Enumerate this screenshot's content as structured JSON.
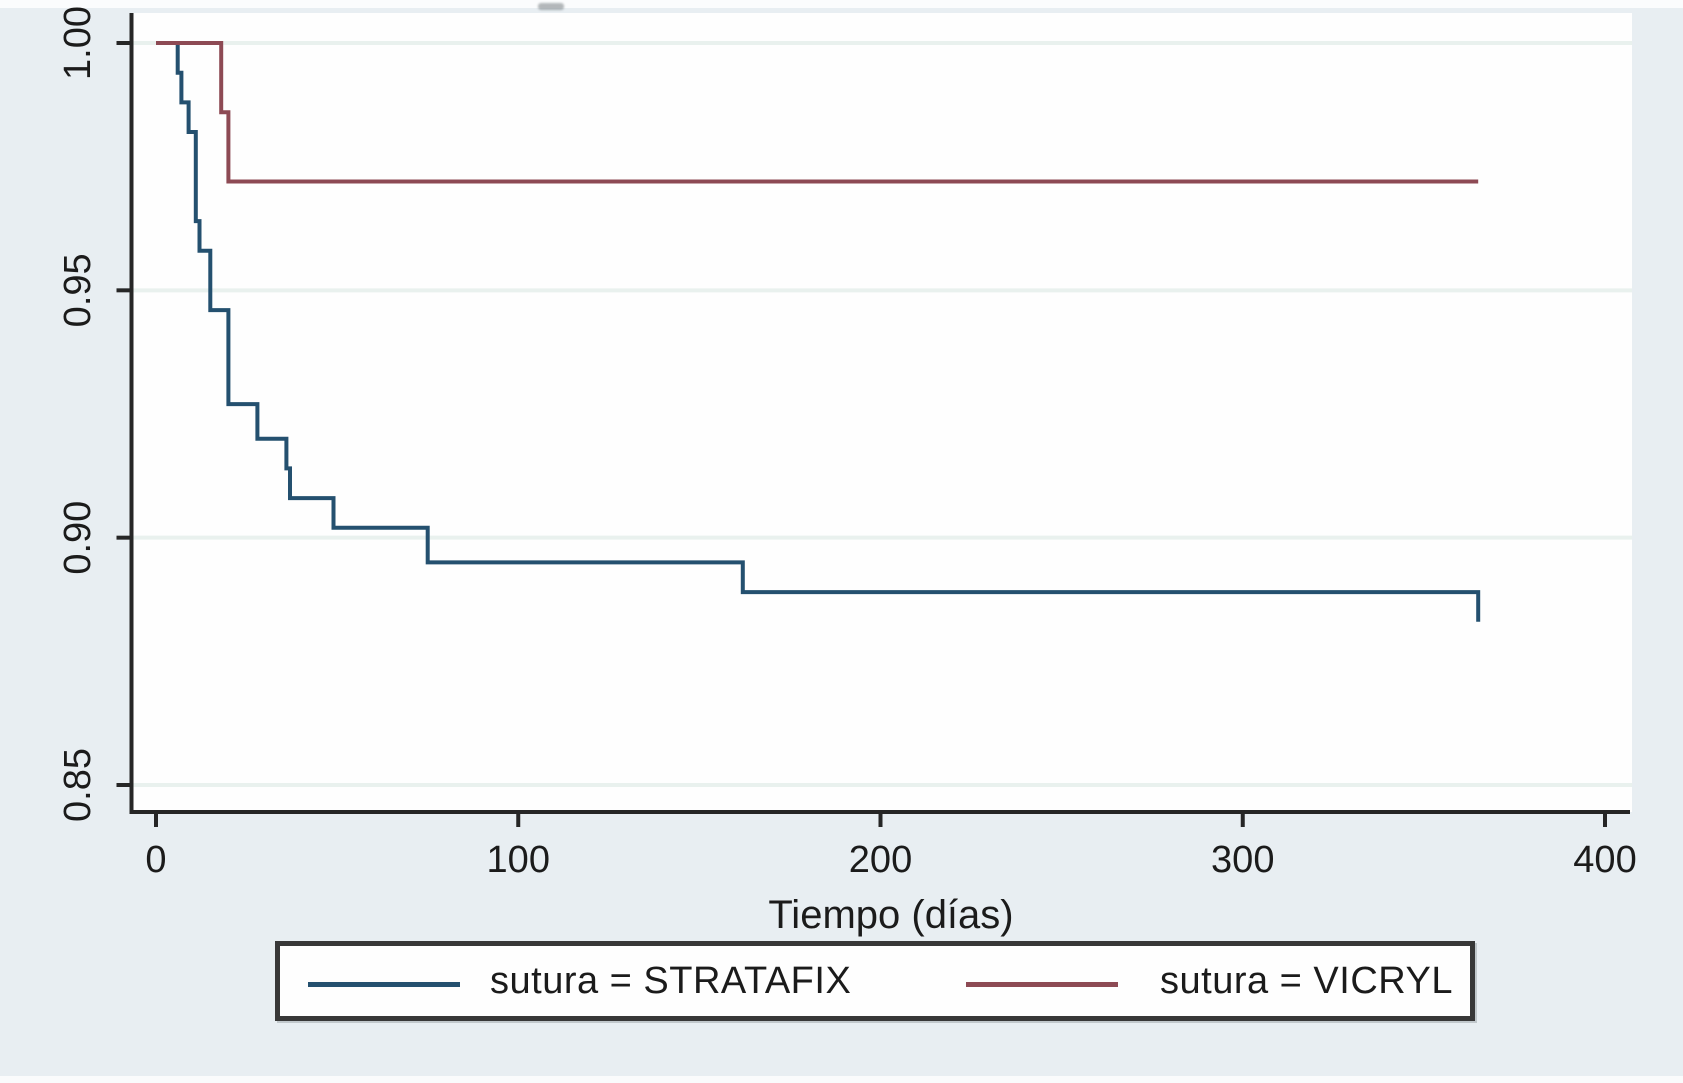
{
  "figure": {
    "description": "Kaplan-Meier survival estimates by suture type",
    "background_color": "#e8eef2",
    "plot_background_color": "#fefefe",
    "axis_color": "#262626",
    "grid_color": "#e9f1ee",
    "text_color": "#1b1b1b"
  },
  "legend": {
    "items": [
      {
        "label": "sutura = STRATAFIX",
        "color": "#24506f"
      },
      {
        "label": "sutura = VICRYL",
        "color": "#8d4a54"
      }
    ]
  },
  "chart_data": {
    "type": "line",
    "subtype": "kaplan-meier-step",
    "title": "",
    "xlabel": "Tiempo (días)",
    "ylabel": "",
    "xlim": [
      0,
      400
    ],
    "ylim": [
      0.85,
      1.0
    ],
    "grid": "horizontal-faint",
    "legend_position": "bottom-box",
    "x_ticks": [
      {
        "value": 0,
        "label": "0"
      },
      {
        "value": 100,
        "label": "100"
      },
      {
        "value": 200,
        "label": "200"
      },
      {
        "value": 300,
        "label": "300"
      },
      {
        "value": 400,
        "label": "400"
      }
    ],
    "y_ticks": [
      {
        "value": 1.0,
        "label": "1.00"
      },
      {
        "value": 0.95,
        "label": "0.95"
      },
      {
        "value": 0.9,
        "label": "0.90"
      },
      {
        "value": 0.85,
        "label": "0.85"
      }
    ],
    "series": [
      {
        "name": "sutura = STRATAFIX",
        "color": "#24506f",
        "steps": [
          [
            0,
            1.0
          ],
          [
            6,
            0.994
          ],
          [
            7,
            0.988
          ],
          [
            9,
            0.982
          ],
          [
            11,
            0.964
          ],
          [
            12,
            0.958
          ],
          [
            15,
            0.946
          ],
          [
            20,
            0.927
          ],
          [
            28,
            0.92
          ],
          [
            36,
            0.914
          ],
          [
            37,
            0.908
          ],
          [
            49,
            0.902
          ],
          [
            75,
            0.895
          ],
          [
            162,
            0.889
          ],
          [
            365,
            0.883
          ]
        ]
      },
      {
        "name": "sutura = VICRYL",
        "color": "#8d4a54",
        "steps": [
          [
            0,
            1.0
          ],
          [
            18,
            0.986
          ],
          [
            20,
            0.972
          ],
          [
            365,
            0.972
          ]
        ]
      }
    ]
  }
}
